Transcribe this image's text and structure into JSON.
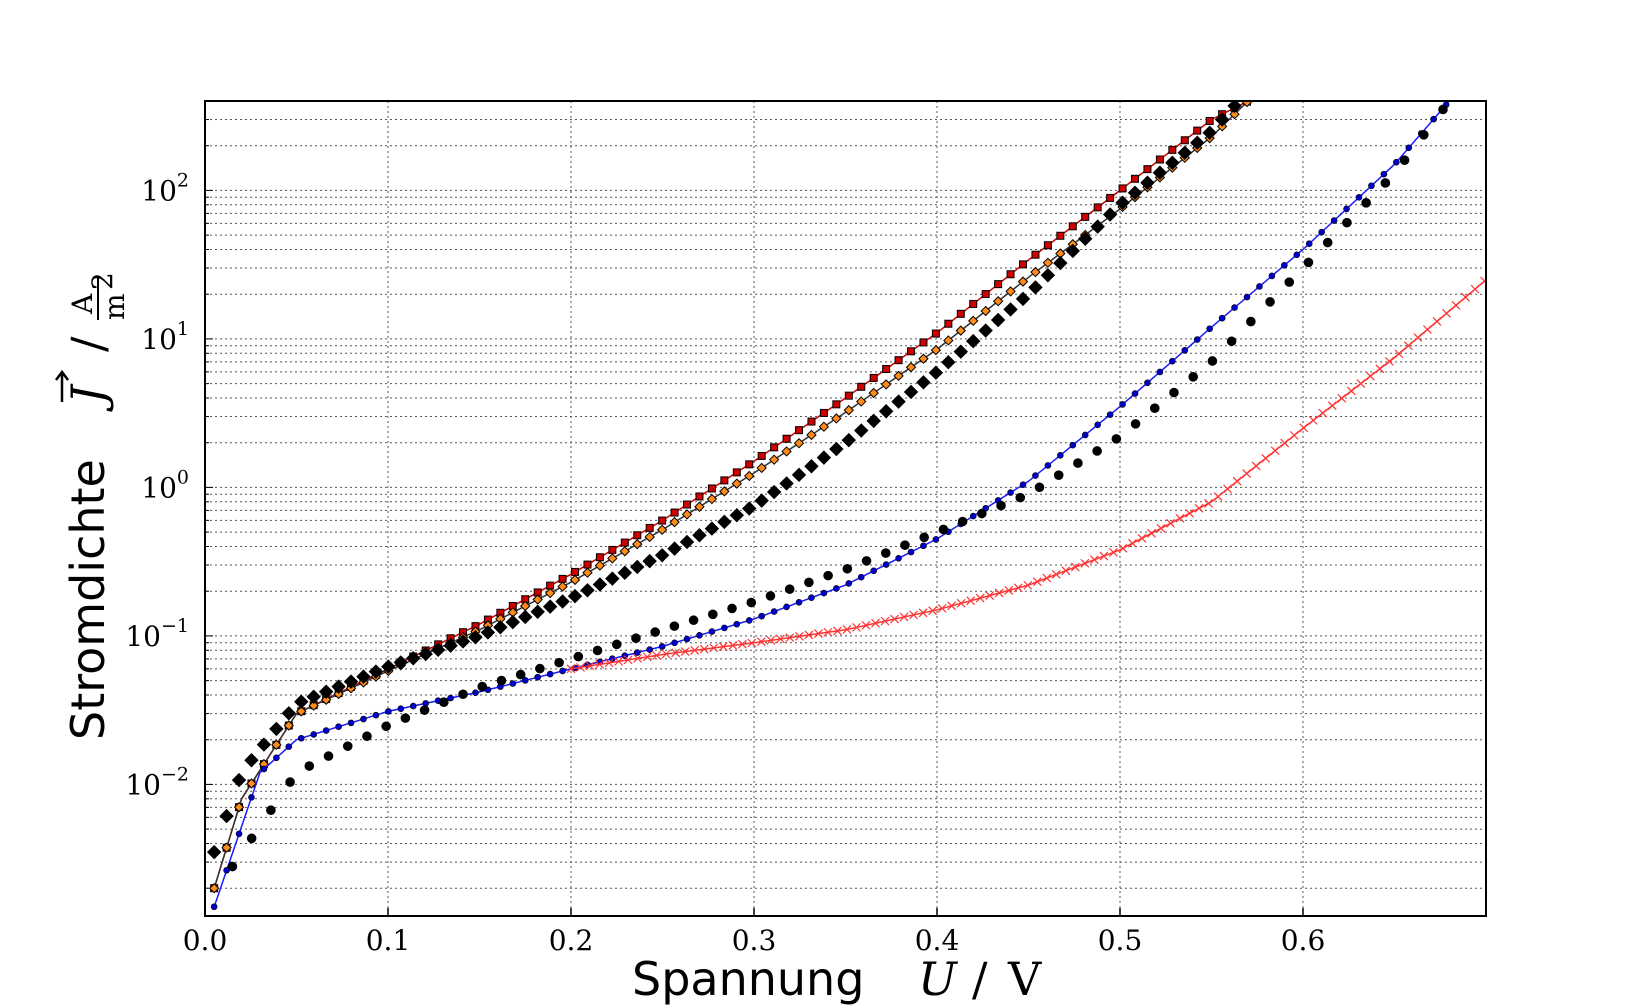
{
  "chart_data": {
    "type": "scatter",
    "title": "",
    "xlabel": {
      "text": "Spannung",
      "symbol": "U",
      "unit": "V"
    },
    "ylabel": {
      "text": "Stromdichte",
      "symbol": "J",
      "unit_num": "A",
      "unit_den": "m",
      "unit_den_exp": "2"
    },
    "xlim": [
      0.0,
      0.7
    ],
    "ylim": [
      0.0013,
      400
    ],
    "yscale": "log",
    "grid": true,
    "legend": "none",
    "x_ticks": [
      {
        "value": 0.0,
        "label": "0.0"
      },
      {
        "value": 0.1,
        "label": "0.1"
      },
      {
        "value": 0.2,
        "label": "0.2"
      },
      {
        "value": 0.3,
        "label": "0.3"
      },
      {
        "value": 0.4,
        "label": "0.4"
      },
      {
        "value": 0.5,
        "label": "0.5"
      },
      {
        "value": 0.6,
        "label": "0.6"
      }
    ],
    "y_ticks": [
      {
        "value": 0.01,
        "base": "10",
        "exp": "−2"
      },
      {
        "value": 0.1,
        "base": "10",
        "exp": "−1"
      },
      {
        "value": 1,
        "base": "10",
        "exp": "0"
      },
      {
        "value": 10,
        "base": "10",
        "exp": "1"
      },
      {
        "value": 100,
        "base": "10",
        "exp": "2"
      }
    ],
    "series": [
      {
        "marker": "square",
        "color": "#cc0000",
        "line": true,
        "line_color": "#cc0000",
        "x": [
          0.005,
          0.02,
          0.05,
          0.1,
          0.15,
          0.2,
          0.25,
          0.3,
          0.35,
          0.4,
          0.45,
          0.5,
          0.55,
          0.57
        ],
        "y": [
          0.002,
          0.008,
          0.03,
          0.06,
          0.12,
          0.26,
          0.6,
          1.5,
          4,
          11,
          34,
          100,
          300,
          400
        ]
      },
      {
        "marker": "diamond",
        "color": "#ff8c1a",
        "line": true,
        "line_color": "#333333",
        "x": [
          0.005,
          0.02,
          0.05,
          0.1,
          0.15,
          0.2,
          0.25,
          0.3,
          0.35,
          0.4,
          0.45,
          0.5,
          0.55,
          0.57
        ],
        "y": [
          0.002,
          0.008,
          0.03,
          0.058,
          0.11,
          0.23,
          0.52,
          1.25,
          3.2,
          8.5,
          26,
          75,
          230,
          400
        ]
      },
      {
        "marker": "diamond",
        "color": "#000000",
        "line": false,
        "x": [
          0.005,
          0.02,
          0.05,
          0.1,
          0.15,
          0.2,
          0.25,
          0.3,
          0.35,
          0.4,
          0.45,
          0.5,
          0.55,
          0.565
        ],
        "y": [
          0.0035,
          0.012,
          0.035,
          0.062,
          0.1,
          0.18,
          0.35,
          0.75,
          2,
          6,
          20,
          80,
          250,
          400
        ]
      },
      {
        "marker": "dot",
        "color": "#0000cc",
        "line": true,
        "line_color": "#1a1aff",
        "x": [
          0.005,
          0.03,
          0.05,
          0.1,
          0.15,
          0.2,
          0.25,
          0.3,
          0.35,
          0.4,
          0.45,
          0.5,
          0.55,
          0.6,
          0.65,
          0.68
        ],
        "y": [
          0.0015,
          0.012,
          0.02,
          0.031,
          0.042,
          0.06,
          0.085,
          0.13,
          0.22,
          0.45,
          1.1,
          3.5,
          12,
          40,
          150,
          400
        ]
      },
      {
        "marker": "dot",
        "color": "#000000",
        "line": false,
        "x": [
          0.015,
          0.05,
          0.1,
          0.15,
          0.2,
          0.25,
          0.3,
          0.35,
          0.4,
          0.45,
          0.5,
          0.55,
          0.6,
          0.65,
          0.68
        ],
        "y": [
          0.0028,
          0.012,
          0.025,
          0.045,
          0.07,
          0.11,
          0.17,
          0.28,
          0.5,
          0.9,
          2.2,
          7,
          30,
          130,
          400
        ]
      },
      {
        "marker": "x",
        "color": "#ff3333",
        "line": true,
        "line_color": "#ff3333",
        "x": [
          0.2,
          0.25,
          0.3,
          0.35,
          0.4,
          0.45,
          0.5,
          0.55,
          0.6,
          0.65,
          0.7
        ],
        "y": [
          0.06,
          0.075,
          0.09,
          0.11,
          0.15,
          0.22,
          0.38,
          0.8,
          2.5,
          7.5,
          25
        ]
      }
    ]
  }
}
